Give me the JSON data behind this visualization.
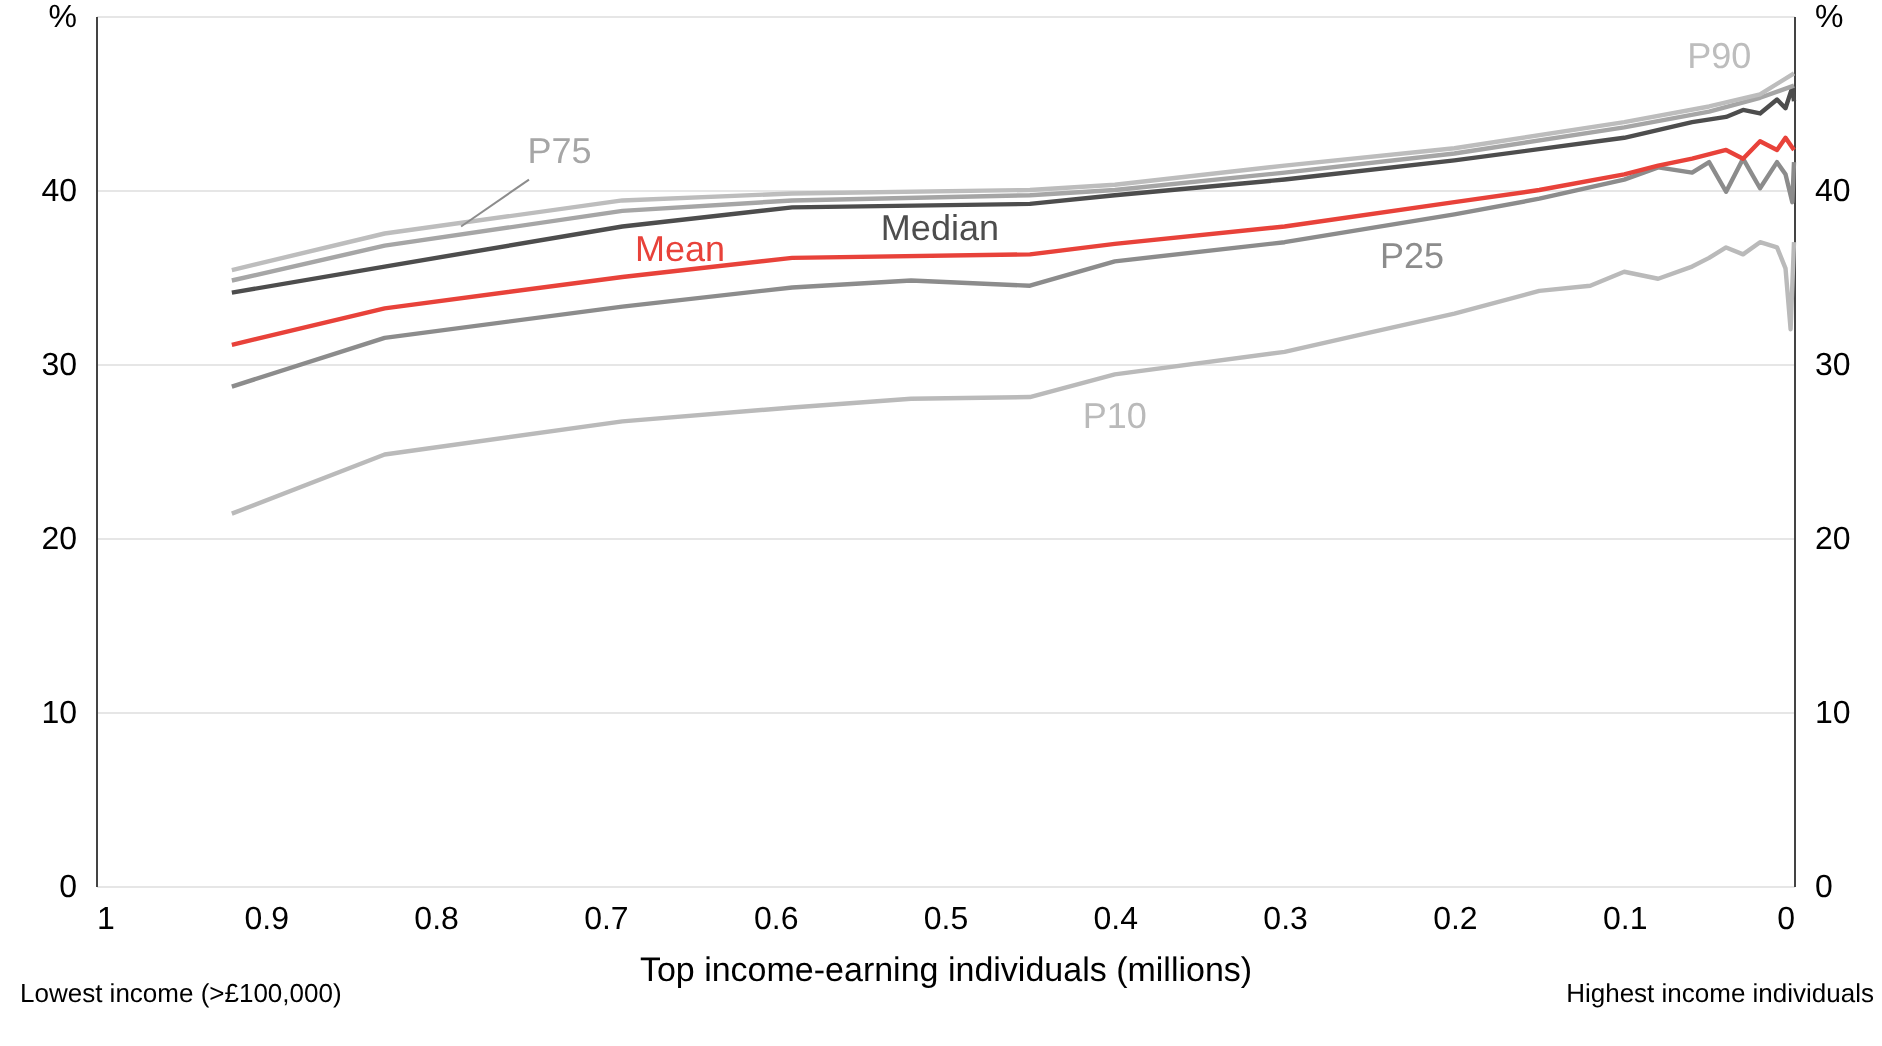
{
  "chart_data": {
    "type": "line",
    "xlabel": "Top income-earning individuals (millions)",
    "xlim": [
      1,
      0
    ],
    "xticks": [
      1,
      0.9,
      0.8,
      0.7,
      0.6,
      0.5,
      0.4,
      0.3,
      0.2,
      0.1,
      0
    ],
    "ylim": [
      0,
      50
    ],
    "yticks": [
      0,
      10,
      20,
      30,
      40,
      {
        "value": 50,
        "label": "%"
      }
    ],
    "y2lim": [
      0,
      50
    ],
    "y2ticks": [
      0,
      10,
      20,
      30,
      40,
      {
        "value": 50,
        "label": "%"
      }
    ],
    "grid": "y",
    "line_style": "solid",
    "marker": "none",
    "annotations": [
      "Lowest income (>£100,000)",
      "Highest income individuals"
    ],
    "series": [
      {
        "name": "P10",
        "color": "#bababa",
        "x": [
          0.92,
          0.83,
          0.69,
          0.59,
          0.52,
          0.45,
          0.4,
          0.3,
          0.25,
          0.2,
          0.15,
          0.12,
          0.1,
          0.08,
          0.06,
          0.05,
          0.04,
          0.03,
          0.02,
          0.01,
          0.005,
          0.002,
          0
        ],
        "values": [
          21.4,
          24.8,
          26.7,
          27.5,
          28.0,
          28.1,
          29.4,
          30.7,
          31.8,
          32.9,
          34.2,
          34.5,
          35.3,
          34.9,
          35.6,
          36.1,
          36.7,
          36.3,
          37.0,
          36.7,
          35.5,
          32.0,
          37.0
        ]
      },
      {
        "name": "P25",
        "color": "#8c8c8c",
        "x": [
          0.92,
          0.83,
          0.69,
          0.59,
          0.52,
          0.45,
          0.4,
          0.3,
          0.2,
          0.15,
          0.1,
          0.08,
          0.06,
          0.05,
          0.04,
          0.03,
          0.02,
          0.01,
          0.005,
          0.001,
          0
        ],
        "values": [
          28.7,
          31.5,
          33.3,
          34.4,
          34.8,
          34.5,
          35.9,
          37.0,
          38.6,
          39.5,
          40.6,
          41.3,
          41.0,
          41.6,
          39.9,
          41.8,
          40.1,
          41.6,
          40.9,
          39.3,
          41.6
        ]
      },
      {
        "name": "Mean",
        "color": "#e8423a",
        "x": [
          0.92,
          0.83,
          0.69,
          0.59,
          0.45,
          0.4,
          0.3,
          0.2,
          0.15,
          0.1,
          0.08,
          0.06,
          0.04,
          0.03,
          0.02,
          0.01,
          0.005,
          0
        ],
        "values": [
          31.1,
          33.2,
          35.0,
          36.1,
          36.3,
          36.9,
          37.9,
          39.3,
          40.0,
          40.9,
          41.4,
          41.8,
          42.3,
          41.8,
          42.8,
          42.3,
          43.0,
          42.3
        ]
      },
      {
        "name": "Median",
        "color": "#4d4d4d",
        "x": [
          0.92,
          0.83,
          0.69,
          0.59,
          0.45,
          0.4,
          0.3,
          0.2,
          0.1,
          0.06,
          0.04,
          0.03,
          0.02,
          0.01,
          0.005,
          0.001,
          0
        ],
        "values": [
          34.1,
          35.6,
          37.9,
          39.0,
          39.2,
          39.7,
          40.6,
          41.7,
          43.0,
          43.9,
          44.2,
          44.6,
          44.4,
          45.2,
          44.7,
          45.9,
          45.1
        ]
      },
      {
        "name": "P75",
        "color": "#a6a6a6",
        "x": [
          0.92,
          0.83,
          0.69,
          0.59,
          0.45,
          0.4,
          0.3,
          0.2,
          0.1,
          0.05,
          0.02,
          0
        ],
        "values": [
          34.8,
          36.8,
          38.8,
          39.4,
          39.7,
          40.0,
          41.0,
          42.1,
          43.6,
          44.5,
          45.3,
          46.0
        ]
      },
      {
        "name": "P90",
        "color": "#bdbdbd",
        "x": [
          0.92,
          0.83,
          0.69,
          0.59,
          0.45,
          0.4,
          0.3,
          0.2,
          0.1,
          0.05,
          0.02,
          0
        ],
        "values": [
          35.4,
          37.5,
          39.4,
          39.8,
          40.0,
          40.3,
          41.4,
          42.4,
          43.9,
          44.8,
          45.5,
          46.7
        ]
      }
    ]
  }
}
